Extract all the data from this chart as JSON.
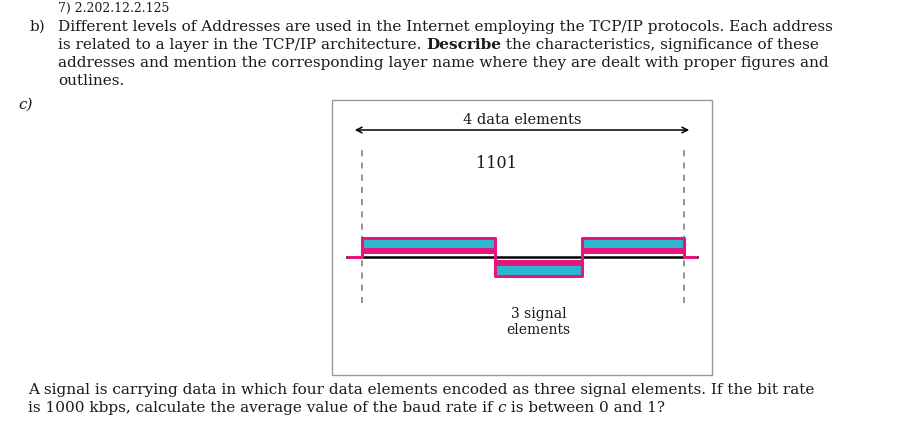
{
  "background_color": "#ffffff",
  "text_color": "#1a1a1a",
  "b_label": "b)",
  "b_line1": "Different levels of Addresses are used in the Internet employing the TCP/IP protocols. Each address",
  "b_line2_pre": "is related to a layer in the TCP/IP architecture. ",
  "b_line2_bold": "Describe",
  "b_line2_post": " the characteristics, significance of these",
  "b_line3": "addresses and mention the corresponding layer name where they are dealt with proper figures and",
  "b_line4": "outlines.",
  "c_label": "c)",
  "diag_title": "4 data elements",
  "diag_code": "1101",
  "diag_signal": "3 signal\nelements",
  "cyan": "#29b8d0",
  "magenta": "#e5177e",
  "gray_box": "#aaaaaa",
  "dash_color": "#777777",
  "bt_line1": "A signal is carrying data in which four data elements encoded as three signal elements. If the bit rate",
  "bt_line2_pre": "is 1000 kbps, calculate the average value of the baud rate if ",
  "bt_italic": "c",
  "bt_line2_post": " is between 0 and 1?",
  "font_size": 11.0,
  "top_scraps": "7) 2.202.12.2.125"
}
